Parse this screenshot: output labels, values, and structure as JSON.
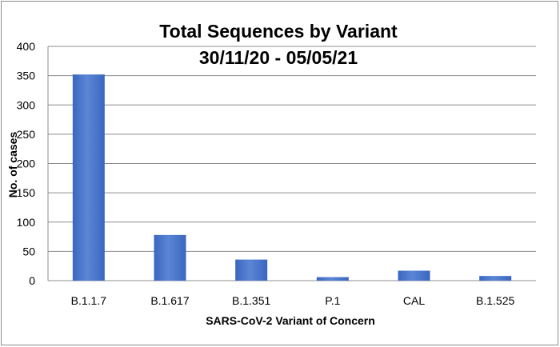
{
  "chart_data": {
    "type": "bar",
    "title": "Total Sequences by Variant",
    "subtitle": "30/11/20 - 05/05/21",
    "xlabel": "SARS-CoV-2 Variant of Concern",
    "ylabel": "No. of cases",
    "categories": [
      "B.1.1.7",
      "B.1.617",
      "B.1.351",
      "P.1",
      "CAL",
      "B.1.525"
    ],
    "values": [
      352,
      78,
      36,
      6,
      17,
      8
    ],
    "ylim": [
      0,
      400
    ],
    "yticks": [
      "0",
      "50",
      "100",
      "150",
      "200",
      "250",
      "300",
      "350",
      "400"
    ],
    "grid": true,
    "legend": "none",
    "colors": {
      "bar": "#4472c4",
      "bar_light": "#5b86d6",
      "bar_dark": "#3a66bf",
      "grid": "#8c8c8c"
    }
  }
}
